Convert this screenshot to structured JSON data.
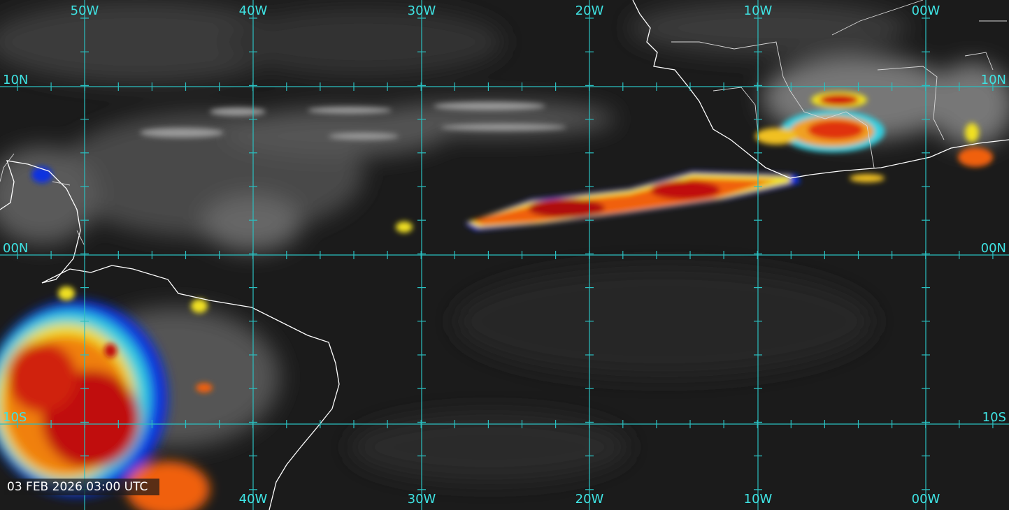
{
  "map": {
    "top_labels": [
      "50W",
      "40W",
      "30W",
      "20W",
      "10W",
      "00W"
    ],
    "bottom_labels": [
      "40W",
      "30W",
      "20W",
      "10W",
      "00W"
    ],
    "left_labels": [
      "10N",
      "00N",
      "10S"
    ],
    "right_labels": [
      "10N",
      "00N",
      "10S"
    ],
    "timestamp": "03 FEB 2026 03:00 UTC"
  }
}
